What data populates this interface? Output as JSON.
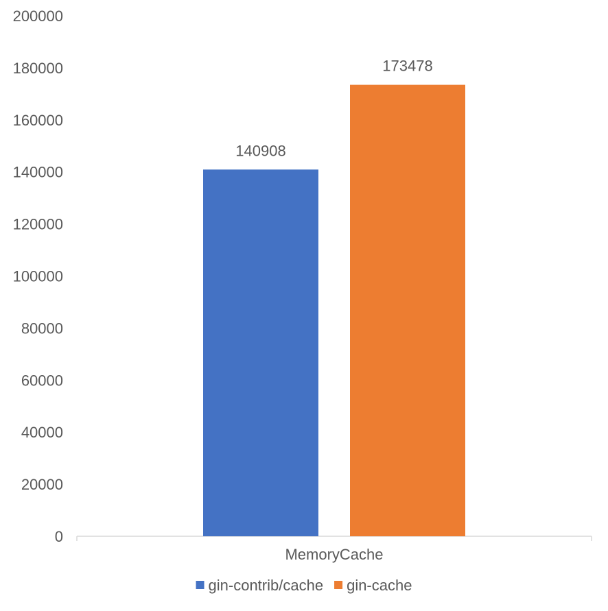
{
  "chart_data": {
    "type": "bar",
    "categories": [
      "MemoryCache"
    ],
    "series": [
      {
        "name": "gin-contrib/cache",
        "values": [
          140908
        ],
        "color": "#4472C4"
      },
      {
        "name": "gin-cache",
        "values": [
          173478
        ],
        "color": "#ED7D31"
      }
    ],
    "data_labels": [
      "140908",
      "173478"
    ],
    "ylim": [
      0,
      200000
    ],
    "yticks": [
      0,
      20000,
      40000,
      60000,
      80000,
      100000,
      120000,
      140000,
      160000,
      180000,
      200000
    ],
    "ytick_labels": [
      "0",
      "20000",
      "40000",
      "60000",
      "80000",
      "100000",
      "120000",
      "140000",
      "160000",
      "180000",
      "200000"
    ],
    "title": "",
    "xlabel": "",
    "ylabel": "",
    "grid": false,
    "legend_position": "bottom"
  }
}
